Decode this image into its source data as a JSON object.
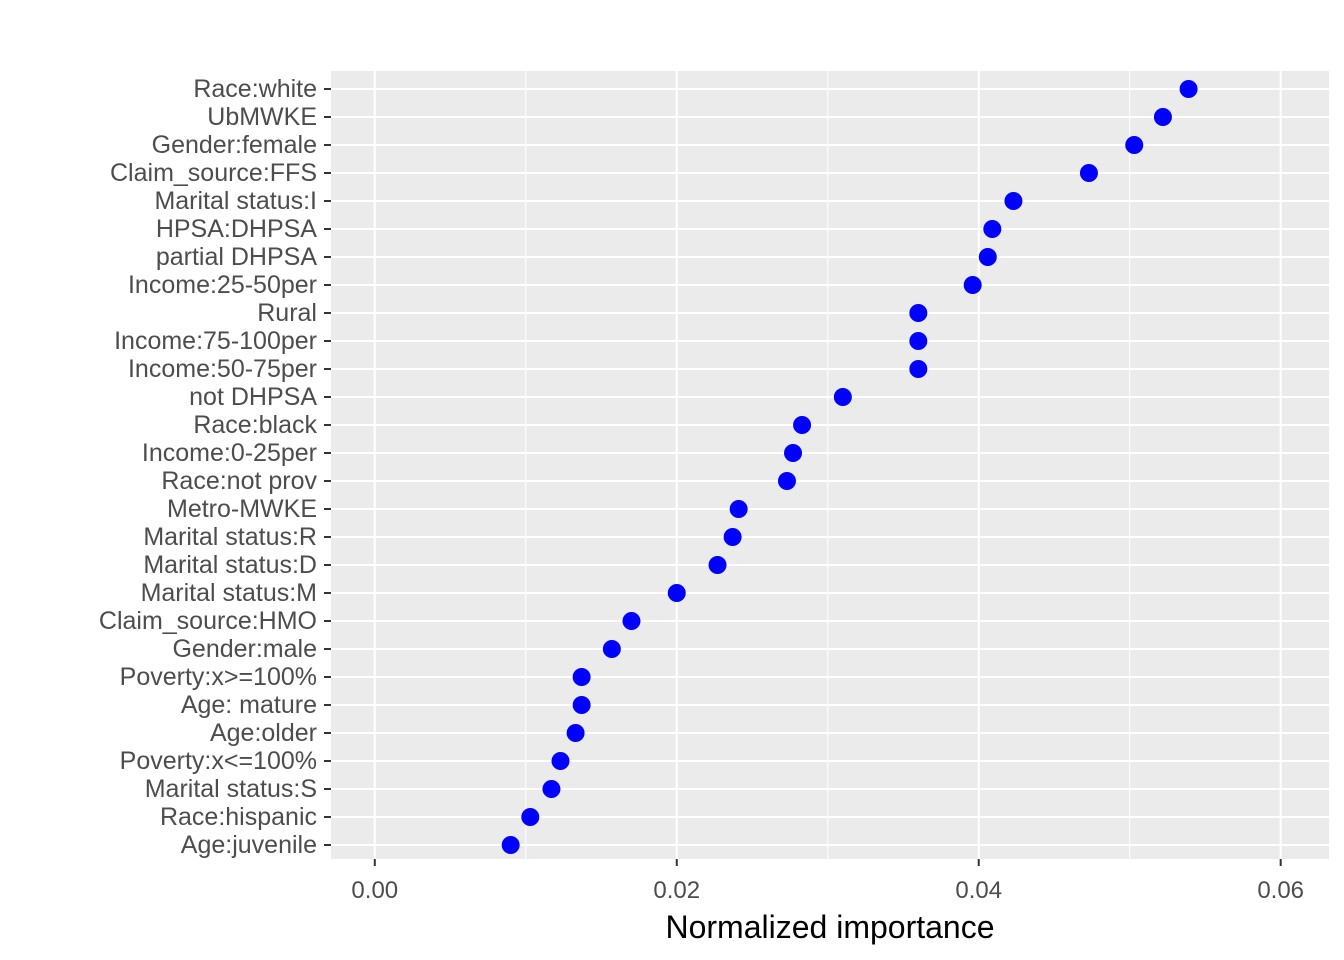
{
  "chart_data": {
    "type": "scatter",
    "title": "",
    "xlabel": "Normalized importance",
    "ylabel": "",
    "xlim": [
      -0.0029,
      0.0632
    ],
    "grid": true,
    "x_ticks": [
      {
        "value": 0.0,
        "label": "0.00"
      },
      {
        "value": 0.02,
        "label": "0.02"
      },
      {
        "value": 0.04,
        "label": "0.04"
      },
      {
        "value": 0.06,
        "label": "0.06"
      }
    ],
    "categories": [
      "Race:white",
      "UbMWKE",
      "Gender:female",
      "Claim_source:FFS",
      "Marital status:I",
      "HPSA:DHPSA",
      "partial DHPSA",
      "Income:25-50per",
      "Rural",
      "Income:75-100per",
      "Income:50-75per",
      "not DHPSA",
      "Race:black",
      "Income:0-25per",
      "Race:not prov",
      "Metro-MWKE",
      "Marital status:R",
      "Marital status:D",
      "Marital status:M",
      "Claim_source:HMO",
      "Gender:male",
      "Poverty:x>=100%",
      "Age: mature",
      "Age:older",
      "Poverty:x<=100%",
      "Marital status:S",
      "Race:hispanic",
      "Age:juvenile"
    ],
    "values": [
      0.0539,
      0.0522,
      0.0503,
      0.0473,
      0.0423,
      0.0409,
      0.0406,
      0.0396,
      0.036,
      0.036,
      0.036,
      0.031,
      0.0283,
      0.0277,
      0.0273,
      0.0241,
      0.0237,
      0.0227,
      0.02,
      0.017,
      0.0157,
      0.0137,
      0.0137,
      0.0133,
      0.0123,
      0.0117,
      0.0103,
      0.009
    ],
    "marker_color": "#0000ff",
    "panel_color": "#ebebeb",
    "grid_color": "#ffffff"
  }
}
